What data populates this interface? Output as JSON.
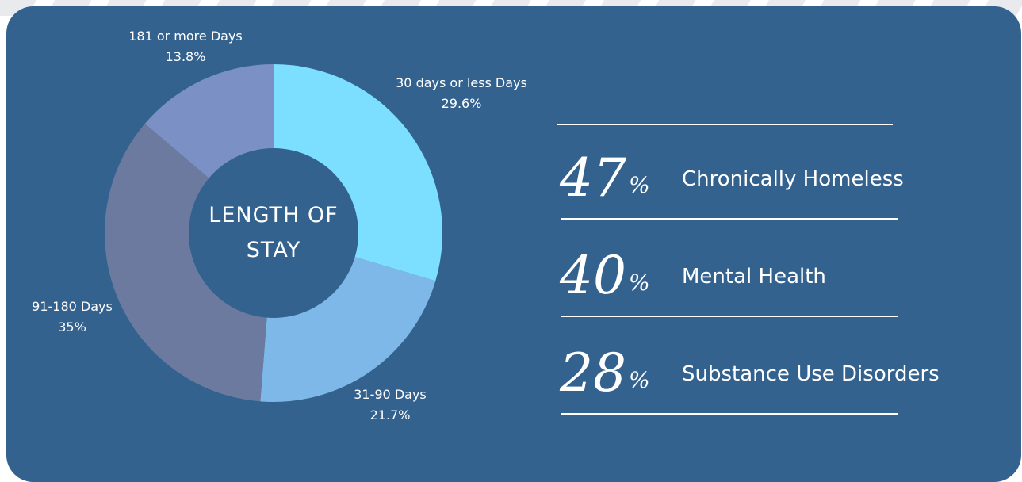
{
  "chart_data": {
    "type": "pie",
    "title": "LENGTH OF STAY",
    "categories": [
      "30 days or less Days",
      "31-90 Days",
      "91-180 Days",
      "181 or more Days"
    ],
    "values": [
      29.6,
      21.7,
      35,
      13.8
    ],
    "value_labels": [
      "29.6%",
      "21.7%",
      "35%",
      "13.8%"
    ],
    "colors": [
      "#7ddfff",
      "#7eb8e8",
      "#6b7a9e",
      "#7b90c4"
    ]
  },
  "stats": [
    {
      "value": 47,
      "unit": "%",
      "label": "Chronically Homeless"
    },
    {
      "value": 40,
      "unit": "%",
      "label": "Mental Health"
    },
    {
      "value": 28,
      "unit": "%",
      "label": "Substance Use Disorders"
    }
  ]
}
